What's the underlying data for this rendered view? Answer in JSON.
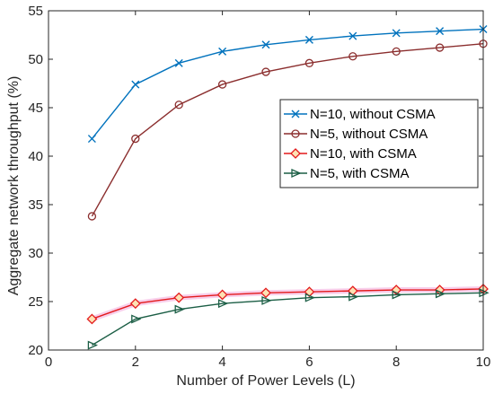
{
  "chart_data": {
    "type": "line",
    "xlabel": "Number of Power Levels (L)",
    "ylabel": "Aggregate network throughput (%)",
    "xlim": [
      0,
      10
    ],
    "ylim": [
      20,
      55
    ],
    "xticks": [
      0,
      2,
      4,
      6,
      8,
      10
    ],
    "yticks": [
      20,
      25,
      30,
      35,
      40,
      45,
      50,
      55
    ],
    "grid": false,
    "legend_position": "right",
    "x": [
      1,
      2,
      3,
      4,
      5,
      6,
      7,
      8,
      9,
      10
    ],
    "series": [
      {
        "name": "N=10, without CSMA",
        "values": [
          41.8,
          47.4,
          49.6,
          50.8,
          51.5,
          52.0,
          52.4,
          52.7,
          52.9,
          53.1
        ],
        "color": "#0072BD",
        "marker": "x"
      },
      {
        "name": "N=5, without CSMA",
        "values": [
          33.8,
          41.8,
          45.3,
          47.4,
          48.7,
          49.6,
          50.3,
          50.8,
          51.2,
          51.6
        ],
        "color": "#8B2E2E",
        "marker": "circle"
      },
      {
        "name": "N=10, with CSMA",
        "values": [
          23.2,
          24.8,
          25.4,
          25.7,
          25.9,
          26.0,
          26.1,
          26.2,
          26.2,
          26.3
        ],
        "color": "#E31A1C",
        "marker": "diamond"
      },
      {
        "name": "N=5, with CSMA",
        "values": [
          20.5,
          23.2,
          24.2,
          24.8,
          25.1,
          25.4,
          25.5,
          25.7,
          25.8,
          25.9
        ],
        "color": "#1B5E45",
        "marker": "triangle-right"
      }
    ]
  }
}
